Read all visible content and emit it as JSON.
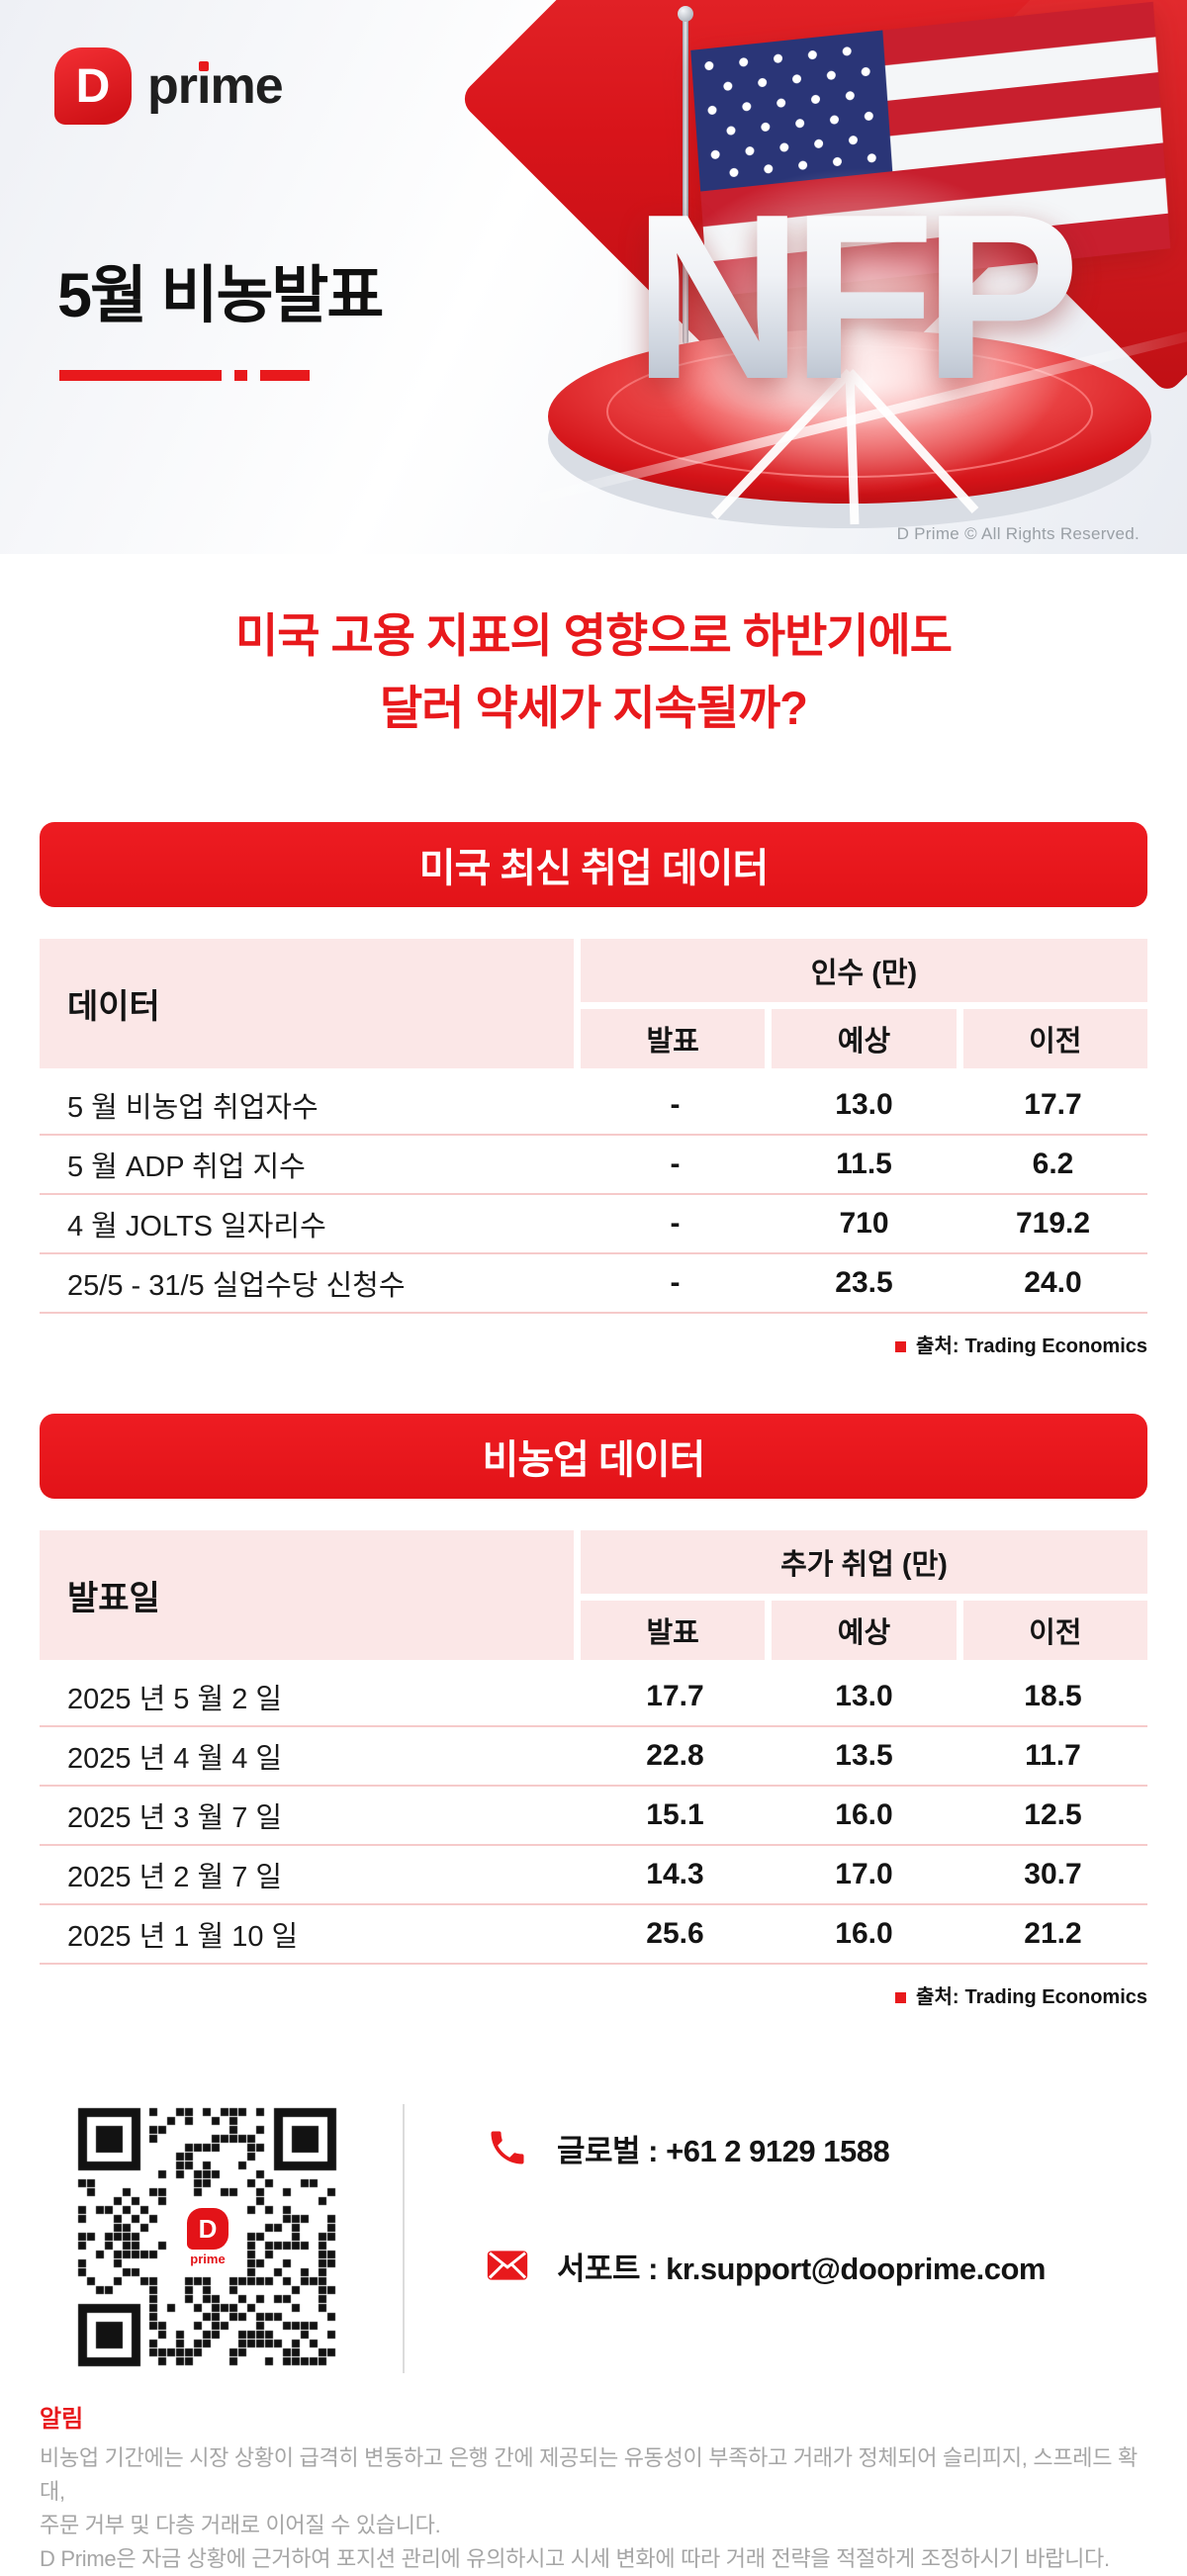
{
  "brand": {
    "logo_d": "D",
    "logo_pre": "pr",
    "logo_i": "ı",
    "logo_post": "me",
    "qr_logo_d": "D",
    "qr_logo_text": "prime",
    "copyright": "D Prime © All Rights Reserved."
  },
  "hero": {
    "title": "5월 비농발표",
    "nfp_text": "NFP"
  },
  "headline": {
    "line1": "미국 고용 지표의 영향으로 하반기에도",
    "line2": "달러 약세가 지속될까?"
  },
  "colors": {
    "brand_red": "#e8191c",
    "banner_red": "#ed1c22",
    "header_pink": "#fbe7e7",
    "row_divider_pink": "#f6caca",
    "gray_text": "#a6a6a6"
  },
  "table1": {
    "banner": "미국 최신 취업 데이터",
    "row_header": "데이터",
    "group_header": "인수 (만)",
    "columns": [
      "발표",
      "예상",
      "이전"
    ],
    "rows": [
      {
        "label": "5 월 비농업 취업자수",
        "announced": "-",
        "expected": "13.0",
        "previous": "17.7"
      },
      {
        "label": "5 월 ADP 취업 지수",
        "announced": "-",
        "expected": "11.5",
        "previous": "6.2"
      },
      {
        "label": "4 월 JOLTS 일자리수",
        "announced": "-",
        "expected": "710",
        "previous": "719.2"
      },
      {
        "label": "25/5 - 31/5 실업수당 신청수",
        "announced": "-",
        "expected": "23.5",
        "previous": "24.0"
      }
    ],
    "source_label": "출처:",
    "source_value": "Trading Economics"
  },
  "table2": {
    "banner": "비농업 데이터",
    "row_header": "발표일",
    "group_header": "추가 취업 (만)",
    "columns": [
      "발표",
      "예상",
      "이전"
    ],
    "rows": [
      {
        "label": "2025 년 5 월 2 일",
        "announced": "17.7",
        "expected": "13.0",
        "previous": "18.5"
      },
      {
        "label": "2025 년 4 월 4 일",
        "announced": "22.8",
        "expected": "13.5",
        "previous": "11.7"
      },
      {
        "label": "2025 년 3 월 7 일",
        "announced": "15.1",
        "expected": "16.0",
        "previous": "12.5"
      },
      {
        "label": "2025 년 2 월 7 일",
        "announced": "14.3",
        "expected": "17.0",
        "previous": "30.7"
      },
      {
        "label": "2025 년 1 월 10 일",
        "announced": "25.6",
        "expected": "16.0",
        "previous": "21.2"
      }
    ],
    "source_label": "출처:",
    "source_value": "Trading Economics"
  },
  "contact": {
    "phone": "글로벌 : +61 2 9129 1588",
    "email": "서포트 : kr.support@dooprime.com"
  },
  "footer": {
    "title": "알림",
    "lines": [
      "비농업 기간에는 시장 상황이 급격히 변동하고 은행 간에 제공되는 유동성이 부족하고 거래가 정체되어 슬리피지, 스프레드 확대,",
      "주문 거부 및 다층 거래로 이어질 수 있습니다.",
      "D Prime은 자금 상황에 근거하여 포지션 관리에 유의하시고 시세 변화에 따라 거래 전략을 적절하게 조정하시기 바랍니다."
    ]
  }
}
